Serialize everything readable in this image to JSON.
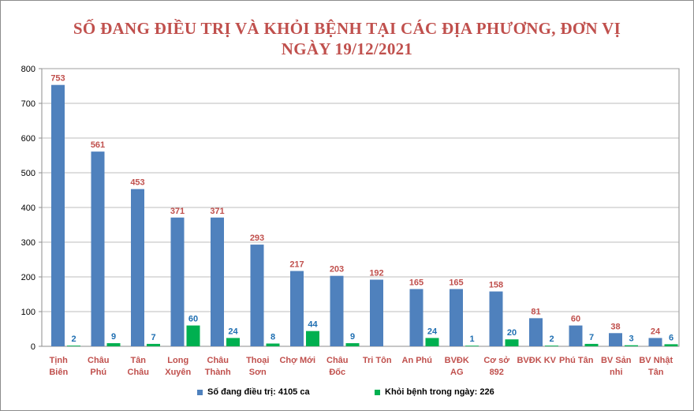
{
  "title_line1": "SỐ ĐANG ĐIỀU TRỊ VÀ KHỎI BỆNH TẠI CÁC ĐỊA PHƯƠNG, ĐƠN VỊ",
  "title_line2": "NGÀY 19/12/2021",
  "colors": {
    "series_treatment": "#4f81bd",
    "series_recovered": "#00b050",
    "category_text": "#c0504d",
    "recovered_label": "#1f6fb2"
  },
  "chart_data": {
    "type": "bar",
    "title": "SỐ ĐANG ĐIỀU TRỊ VÀ KHỎI BỆNH TẠI CÁC ĐỊA PHƯƠNG, ĐƠN VỊ NGÀY 19/12/2021",
    "categories": [
      [
        "Tịnh",
        "Biên"
      ],
      [
        "Châu",
        "Phú"
      ],
      [
        "Tân",
        "Châu"
      ],
      [
        "Long",
        "Xuyên"
      ],
      [
        "Châu",
        "Thành"
      ],
      [
        "Thoại",
        "Sơn"
      ],
      [
        "Chợ Mới"
      ],
      [
        "Châu",
        "Đốc"
      ],
      [
        "Tri Tôn"
      ],
      [
        "An Phú"
      ],
      [
        "BVĐK",
        "AG"
      ],
      [
        "Cơ sở",
        "892"
      ],
      [
        "BVĐK KV"
      ],
      [
        "Phú Tân"
      ],
      [
        "BV Sản",
        "nhi"
      ],
      [
        "BV Nhật",
        "Tân"
      ]
    ],
    "series": [
      {
        "name": "Số đang điều trị: 4105 ca",
        "values": [
          753,
          561,
          453,
          371,
          371,
          293,
          217,
          203,
          192,
          165,
          165,
          158,
          81,
          60,
          38,
          24
        ]
      },
      {
        "name": "Khỏi bệnh trong ngày: 226",
        "values": [
          2,
          9,
          7,
          60,
          24,
          8,
          44,
          9,
          null,
          24,
          1,
          20,
          2,
          7,
          3,
          6
        ]
      }
    ],
    "ylim": [
      0,
      800
    ],
    "yticks": [
      "0",
      "100",
      "200",
      "300",
      "400",
      "500",
      "600",
      "700",
      "800"
    ],
    "grid": true,
    "legend_position": "bottom"
  }
}
